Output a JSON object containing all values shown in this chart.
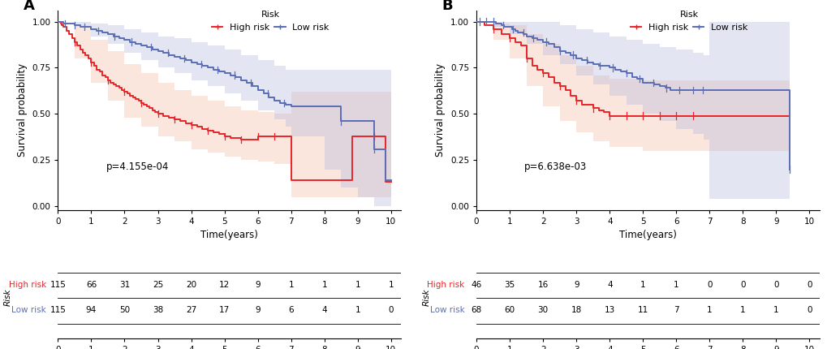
{
  "panel_A": {
    "title": "A",
    "pvalue": "p=4.155e-04",
    "xlabel": "Time(years)",
    "ylabel": "Survival probability",
    "xlim": [
      0,
      10.3
    ],
    "ylim": [
      -0.02,
      1.06
    ],
    "xticks": [
      0,
      1,
      2,
      3,
      4,
      5,
      6,
      7,
      8,
      9,
      10
    ],
    "yticks": [
      0.0,
      0.25,
      0.5,
      0.75,
      1.0
    ],
    "high_risk_color": "#E8252A",
    "low_risk_color": "#5A6DB5",
    "high_risk_fill": "#F5B8A0",
    "low_risk_fill": "#B0B8DC",
    "high_risk_x": [
      0.0,
      0.08,
      0.12,
      0.17,
      0.25,
      0.33,
      0.42,
      0.5,
      0.58,
      0.67,
      0.75,
      0.83,
      0.92,
      1.0,
      1.08,
      1.17,
      1.25,
      1.33,
      1.42,
      1.5,
      1.58,
      1.67,
      1.75,
      1.83,
      1.92,
      2.0,
      2.08,
      2.17,
      2.25,
      2.33,
      2.42,
      2.5,
      2.58,
      2.67,
      2.75,
      2.83,
      2.92,
      3.0,
      3.17,
      3.33,
      3.5,
      3.67,
      3.83,
      4.0,
      4.17,
      4.33,
      4.5,
      4.67,
      4.83,
      5.0,
      5.17,
      5.33,
      5.5,
      5.67,
      5.83,
      6.0,
      6.17,
      6.33,
      6.5,
      6.67,
      6.83,
      7.0,
      7.5,
      8.0,
      8.5,
      8.83,
      9.0,
      9.17,
      9.5,
      9.83,
      10.0
    ],
    "high_risk_y": [
      1.0,
      0.99,
      0.98,
      0.97,
      0.95,
      0.93,
      0.91,
      0.89,
      0.87,
      0.85,
      0.83,
      0.82,
      0.8,
      0.78,
      0.76,
      0.74,
      0.73,
      0.71,
      0.7,
      0.68,
      0.67,
      0.66,
      0.65,
      0.64,
      0.63,
      0.62,
      0.61,
      0.6,
      0.59,
      0.58,
      0.57,
      0.56,
      0.55,
      0.54,
      0.53,
      0.52,
      0.51,
      0.5,
      0.49,
      0.48,
      0.47,
      0.46,
      0.45,
      0.44,
      0.43,
      0.42,
      0.41,
      0.4,
      0.39,
      0.38,
      0.37,
      0.37,
      0.36,
      0.36,
      0.36,
      0.38,
      0.38,
      0.38,
      0.38,
      0.38,
      0.38,
      0.14,
      0.14,
      0.14,
      0.14,
      0.38,
      0.38,
      0.38,
      0.38,
      0.13,
      0.13
    ],
    "high_risk_ci_upper": [
      0.0,
      0.5,
      1.0,
      1.5,
      2.0,
      2.5,
      3.0,
      3.5,
      4.0,
      4.5,
      5.0,
      5.5,
      6.0,
      6.5,
      6.83,
      7.0,
      8.0,
      9.0,
      9.83,
      10.0
    ],
    "high_risk_ci_upper_y": [
      1.0,
      0.97,
      0.9,
      0.84,
      0.77,
      0.72,
      0.67,
      0.63,
      0.6,
      0.57,
      0.54,
      0.52,
      0.51,
      0.5,
      0.5,
      0.62,
      0.62,
      0.62,
      0.62,
      0.62
    ],
    "high_risk_ci_lower_y": [
      1.0,
      0.8,
      0.67,
      0.57,
      0.48,
      0.43,
      0.38,
      0.35,
      0.31,
      0.29,
      0.27,
      0.25,
      0.24,
      0.23,
      0.23,
      0.05,
      0.05,
      0.05,
      0.05,
      0.05
    ],
    "low_risk_x": [
      0.0,
      0.17,
      0.33,
      0.5,
      0.67,
      0.83,
      1.0,
      1.17,
      1.33,
      1.5,
      1.67,
      1.83,
      2.0,
      2.17,
      2.33,
      2.5,
      2.67,
      2.83,
      3.0,
      3.17,
      3.33,
      3.5,
      3.67,
      3.83,
      4.0,
      4.17,
      4.33,
      4.5,
      4.67,
      4.83,
      5.0,
      5.17,
      5.33,
      5.5,
      5.67,
      5.83,
      6.0,
      6.17,
      6.33,
      6.5,
      6.67,
      6.83,
      7.0,
      7.5,
      8.0,
      8.5,
      9.0,
      9.5,
      9.83,
      10.0
    ],
    "low_risk_y": [
      1.0,
      0.99,
      0.99,
      0.98,
      0.97,
      0.97,
      0.96,
      0.95,
      0.94,
      0.93,
      0.92,
      0.91,
      0.9,
      0.89,
      0.88,
      0.87,
      0.86,
      0.85,
      0.84,
      0.83,
      0.82,
      0.81,
      0.8,
      0.79,
      0.78,
      0.77,
      0.76,
      0.75,
      0.74,
      0.73,
      0.72,
      0.71,
      0.7,
      0.68,
      0.67,
      0.65,
      0.63,
      0.61,
      0.59,
      0.57,
      0.56,
      0.55,
      0.54,
      0.54,
      0.54,
      0.46,
      0.46,
      0.31,
      0.14,
      0.14
    ],
    "low_risk_ci_upper": [
      0.0,
      0.5,
      1.0,
      1.5,
      2.0,
      2.5,
      3.0,
      3.5,
      4.0,
      4.5,
      5.0,
      5.5,
      6.0,
      6.5,
      6.83,
      7.0,
      8.0,
      8.5,
      9.0,
      9.5,
      9.83,
      10.0
    ],
    "low_risk_ci_upper_y": [
      1.0,
      1.0,
      0.99,
      0.98,
      0.96,
      0.94,
      0.92,
      0.91,
      0.89,
      0.87,
      0.85,
      0.82,
      0.79,
      0.76,
      0.74,
      0.74,
      0.74,
      0.74,
      0.74,
      0.74,
      0.74,
      0.74
    ],
    "low_risk_ci_lower_y": [
      1.0,
      0.97,
      0.92,
      0.88,
      0.83,
      0.79,
      0.75,
      0.72,
      0.68,
      0.65,
      0.61,
      0.57,
      0.52,
      0.47,
      0.43,
      0.38,
      0.2,
      0.1,
      0.05,
      0.0,
      0.0,
      0.0
    ],
    "high_censor_x": [
      0.5,
      1.0,
      1.5,
      2.0,
      2.5,
      3.0,
      3.5,
      4.0,
      4.5,
      5.0,
      5.5,
      6.0,
      6.5,
      9.5
    ],
    "low_censor_x": [
      0.2,
      0.5,
      0.8,
      1.2,
      1.7,
      2.2,
      2.8,
      3.3,
      3.8,
      4.3,
      4.8,
      5.3,
      5.8,
      6.3,
      6.8,
      8.5,
      9.5
    ],
    "table_high_risk": [
      115,
      66,
      31,
      25,
      20,
      12,
      9,
      1,
      1,
      1,
      1
    ],
    "table_low_risk": [
      115,
      94,
      50,
      38,
      27,
      17,
      9,
      6,
      4,
      1,
      0
    ],
    "table_times": [
      0,
      1,
      2,
      3,
      4,
      5,
      6,
      7,
      8,
      9,
      10
    ]
  },
  "panel_B": {
    "title": "B",
    "pvalue": "p=6.638e-03",
    "xlabel": "Time(years)",
    "ylabel": "Survival probability",
    "xlim": [
      0,
      10.3
    ],
    "ylim": [
      -0.02,
      1.06
    ],
    "xticks": [
      0,
      1,
      2,
      3,
      4,
      5,
      6,
      7,
      8,
      9,
      10
    ],
    "yticks": [
      0.0,
      0.25,
      0.5,
      0.75,
      1.0
    ],
    "high_risk_color": "#E8252A",
    "low_risk_color": "#5A6DB5",
    "high_risk_fill": "#F5B8A0",
    "low_risk_fill": "#B0B8DC",
    "high_risk_x": [
      0.0,
      0.25,
      0.5,
      0.75,
      1.0,
      1.17,
      1.33,
      1.5,
      1.67,
      1.83,
      2.0,
      2.17,
      2.33,
      2.5,
      2.67,
      2.83,
      3.0,
      3.17,
      3.33,
      3.5,
      3.67,
      3.83,
      4.0,
      4.25,
      4.5,
      4.75,
      5.0,
      5.25,
      5.5,
      5.75,
      6.0,
      6.25,
      6.5,
      6.75,
      7.0,
      9.4
    ],
    "high_risk_y": [
      1.0,
      0.98,
      0.96,
      0.93,
      0.91,
      0.89,
      0.87,
      0.8,
      0.76,
      0.74,
      0.72,
      0.7,
      0.67,
      0.65,
      0.63,
      0.6,
      0.57,
      0.55,
      0.55,
      0.53,
      0.52,
      0.51,
      0.49,
      0.49,
      0.49,
      0.49,
      0.49,
      0.49,
      0.49,
      0.49,
      0.49,
      0.49,
      0.49,
      0.49,
      0.49,
      0.49
    ],
    "high_risk_ci_upper": [
      0.0,
      0.5,
      1.0,
      1.5,
      2.0,
      2.5,
      3.0,
      3.5,
      4.0,
      5.0,
      6.0,
      7.0,
      9.4
    ],
    "high_risk_ci_upper_y": [
      1.0,
      0.99,
      0.98,
      0.93,
      0.88,
      0.82,
      0.76,
      0.71,
      0.69,
      0.68,
      0.68,
      0.68,
      0.68
    ],
    "high_risk_ci_lower_y": [
      1.0,
      0.9,
      0.8,
      0.65,
      0.54,
      0.46,
      0.4,
      0.35,
      0.32,
      0.3,
      0.3,
      0.3,
      0.3
    ],
    "low_risk_x": [
      0.0,
      0.08,
      0.17,
      0.25,
      0.33,
      0.42,
      0.5,
      0.58,
      0.67,
      0.75,
      0.83,
      0.92,
      1.0,
      1.08,
      1.17,
      1.25,
      1.33,
      1.42,
      1.5,
      1.67,
      1.83,
      2.0,
      2.17,
      2.33,
      2.5,
      2.67,
      2.83,
      3.0,
      3.17,
      3.33,
      3.5,
      3.67,
      3.83,
      4.0,
      4.17,
      4.33,
      4.5,
      4.67,
      4.83,
      5.0,
      5.17,
      5.33,
      5.5,
      5.67,
      5.83,
      6.0,
      6.17,
      6.33,
      6.5,
      6.67,
      6.83,
      7.0,
      9.4
    ],
    "low_risk_y": [
      1.0,
      1.0,
      1.0,
      1.0,
      1.0,
      1.0,
      1.0,
      0.99,
      0.99,
      0.98,
      0.97,
      0.97,
      0.97,
      0.96,
      0.95,
      0.94,
      0.94,
      0.93,
      0.92,
      0.91,
      0.9,
      0.89,
      0.88,
      0.86,
      0.84,
      0.83,
      0.82,
      0.8,
      0.79,
      0.78,
      0.77,
      0.76,
      0.76,
      0.75,
      0.74,
      0.73,
      0.72,
      0.7,
      0.69,
      0.67,
      0.67,
      0.66,
      0.65,
      0.64,
      0.63,
      0.63,
      0.63,
      0.63,
      0.63,
      0.63,
      0.63,
      0.63,
      0.2
    ],
    "low_risk_ci_upper": [
      0.0,
      0.5,
      1.0,
      1.5,
      2.0,
      2.5,
      3.0,
      3.5,
      4.0,
      4.5,
      5.0,
      5.5,
      6.0,
      6.5,
      6.83,
      7.0,
      9.4
    ],
    "low_risk_ci_upper_y": [
      1.0,
      1.0,
      1.0,
      1.0,
      1.0,
      0.98,
      0.96,
      0.94,
      0.92,
      0.9,
      0.88,
      0.86,
      0.85,
      0.83,
      0.82,
      1.0,
      1.0
    ],
    "low_risk_ci_lower_y": [
      1.0,
      0.97,
      0.93,
      0.88,
      0.82,
      0.77,
      0.71,
      0.66,
      0.6,
      0.55,
      0.5,
      0.46,
      0.42,
      0.39,
      0.36,
      0.04,
      0.04
    ],
    "high_censor_x": [
      0.5,
      1.0,
      1.5,
      2.0,
      2.5,
      3.0,
      3.5,
      4.0,
      4.5,
      5.0,
      5.5,
      6.0,
      6.5
    ],
    "low_censor_x": [
      0.1,
      0.3,
      0.5,
      0.8,
      1.1,
      1.4,
      1.7,
      2.1,
      2.5,
      2.9,
      3.3,
      3.7,
      4.1,
      4.5,
      4.9,
      5.3,
      5.7,
      6.1,
      6.5,
      6.8,
      9.4
    ],
    "table_high_risk": [
      46,
      35,
      16,
      9,
      4,
      1,
      1,
      0,
      0,
      0,
      0
    ],
    "table_low_risk": [
      68,
      60,
      30,
      18,
      13,
      11,
      7,
      1,
      1,
      1,
      0
    ],
    "table_times": [
      0,
      1,
      2,
      3,
      4,
      5,
      6,
      7,
      8,
      9,
      10
    ]
  },
  "legend_title": "Risk",
  "background_color": "#FFFFFF",
  "fig_label_fontsize": 13,
  "axis_label_fontsize": 8.5,
  "tick_fontsize": 7.5,
  "pvalue_fontsize": 8.5,
  "table_fontsize": 7.5,
  "legend_fontsize": 8
}
